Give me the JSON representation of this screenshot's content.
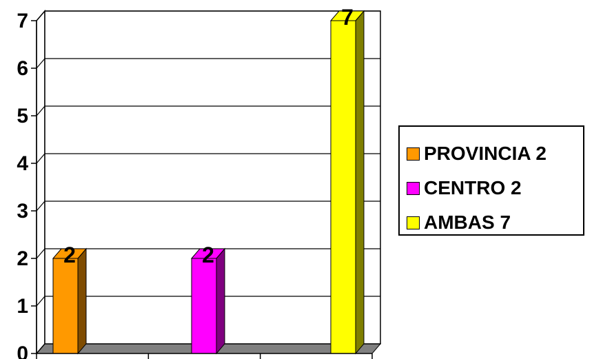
{
  "chart_data": {
    "type": "bar",
    "categories": [
      "PROVINCIA",
      "CENTRO",
      "AMBAS"
    ],
    "series": [
      {
        "name": "PROVINCIA 2",
        "values": [
          2,
          null,
          null
        ],
        "color": "#ff9900",
        "side_color": "#7f4c00"
      },
      {
        "name": "CENTRO 2",
        "values": [
          null,
          2,
          null
        ],
        "color": "#ff00ff",
        "side_color": "#7f007f"
      },
      {
        "name": "AMBAS 7",
        "values": [
          null,
          null,
          7
        ],
        "color": "#ffff00",
        "side_color": "#7f7f00"
      }
    ],
    "data_labels": [
      "2",
      "2",
      "7"
    ],
    "ylim": [
      0,
      7
    ],
    "yticks": [
      "0",
      "1",
      "2",
      "3",
      "4",
      "5",
      "6",
      "7"
    ],
    "grid": true,
    "three_d": true,
    "floor_color": "#808080",
    "legend_position": "right",
    "title": "",
    "xlabel": "",
    "ylabel": ""
  }
}
